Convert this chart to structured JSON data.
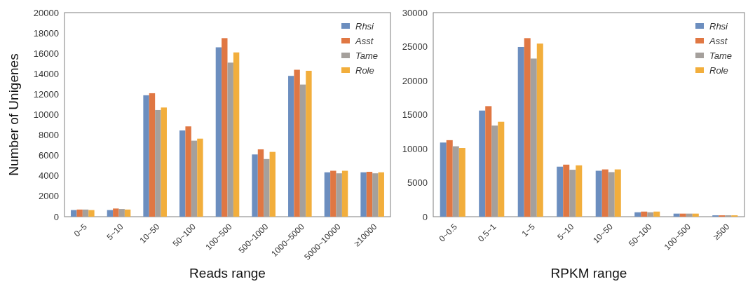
{
  "chart_data": [
    {
      "type": "bar",
      "xlabel": "Reads range",
      "ylabel": "Number of Unigenes",
      "categories": [
        "0~5",
        "5~10",
        "10~50",
        "50~100",
        "100~500",
        "500~1000",
        "1000~5000",
        "5000~10000",
        "≥10000"
      ],
      "series": [
        {
          "name": "Rhsi",
          "color": "#6c8ebf",
          "values": [
            650,
            650,
            11900,
            8450,
            16600,
            6100,
            13800,
            4350,
            4350
          ]
        },
        {
          "name": "Asst",
          "color": "#e07743",
          "values": [
            700,
            800,
            12100,
            8850,
            17500,
            6600,
            14400,
            4500,
            4400
          ]
        },
        {
          "name": "Tame",
          "color": "#a5a09c",
          "values": [
            700,
            750,
            10450,
            7450,
            15100,
            5650,
            12950,
            4250,
            4250
          ]
        },
        {
          "name": "Role",
          "color": "#f2ae3c",
          "values": [
            650,
            700,
            10700,
            7650,
            16100,
            6350,
            14300,
            4500,
            4350
          ]
        }
      ],
      "ylim": [
        0,
        20000
      ],
      "yticks": [
        0,
        2000,
        4000,
        6000,
        8000,
        10000,
        12000,
        14000,
        16000,
        18000,
        20000
      ],
      "legend": "top right",
      "grid": false
    },
    {
      "type": "bar",
      "xlabel": "RPKM range",
      "categories": [
        "0~0.5",
        "0.5~1",
        "1~5",
        "5~10",
        "10~50",
        "50~100",
        "100~500",
        "≥500"
      ],
      "series": [
        {
          "name": "Rhsi",
          "color": "#6c8ebf",
          "values": [
            10900,
            15600,
            24950,
            7350,
            6750,
            650,
            450,
            200
          ]
        },
        {
          "name": "Asst",
          "color": "#e07743",
          "values": [
            11250,
            16250,
            26250,
            7650,
            6950,
            750,
            450,
            200
          ]
        },
        {
          "name": "Tame",
          "color": "#a5a09c",
          "values": [
            10350,
            13400,
            23250,
            6900,
            6550,
            650,
            450,
            200
          ]
        },
        {
          "name": "Role",
          "color": "#f2ae3c",
          "values": [
            10100,
            13950,
            25450,
            7550,
            6950,
            750,
            450,
            200
          ]
        }
      ],
      "ylim": [
        0,
        30000
      ],
      "yticks": [
        0,
        5000,
        10000,
        15000,
        20000,
        25000,
        30000
      ],
      "legend": "top right",
      "grid": false
    }
  ]
}
